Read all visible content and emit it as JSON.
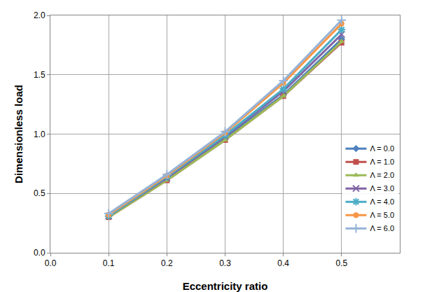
{
  "chart_data": {
    "type": "line",
    "x_label": "Eccentricity ratio",
    "y_label": "Dimensionless load",
    "x": [
      0.1,
      0.2,
      0.3,
      0.4,
      0.5
    ],
    "series": [
      {
        "name": "Λ = 0.0",
        "color": "#4f81bd",
        "marker": "diamond",
        "values": [
          0.31,
          0.63,
          0.97,
          1.33,
          1.8
        ]
      },
      {
        "name": "Λ = 1.0",
        "color": "#c0504d",
        "marker": "square",
        "values": [
          0.3,
          0.61,
          0.95,
          1.32,
          1.77
        ]
      },
      {
        "name": "Λ = 2.0",
        "color": "#9bbb59",
        "marker": "triangle",
        "values": [
          0.3,
          0.61,
          0.95,
          1.32,
          1.78
        ]
      },
      {
        "name": "Λ = 3.0",
        "color": "#8064a2",
        "marker": "x",
        "values": [
          0.31,
          0.63,
          0.98,
          1.36,
          1.84
        ]
      },
      {
        "name": "Λ = 4.0",
        "color": "#4bacc6",
        "marker": "star",
        "values": [
          0.31,
          0.64,
          0.99,
          1.38,
          1.88
        ]
      },
      {
        "name": "Λ = 5.0",
        "color": "#f79646",
        "marker": "circle",
        "values": [
          0.32,
          0.65,
          1.01,
          1.43,
          1.93
        ]
      },
      {
        "name": "Λ = 6.0",
        "color": "#95b3d7",
        "marker": "plus",
        "values": [
          0.33,
          0.66,
          1.02,
          1.45,
          1.96
        ]
      }
    ],
    "xlim": [
      0,
      0.6
    ],
    "xticks": [
      {
        "value": 0,
        "label": "0.0"
      },
      0.1,
      0.2,
      0.3,
      0.4,
      0.5
    ],
    "ylim": [
      0,
      2
    ],
    "yticks": [
      {
        "value": 0,
        "label": "0.0"
      },
      0.5,
      {
        "value": 1,
        "label": "1.0"
      },
      1.5,
      {
        "value": 2,
        "label": "2.0"
      }
    ],
    "grid": true,
    "legend": "right"
  }
}
